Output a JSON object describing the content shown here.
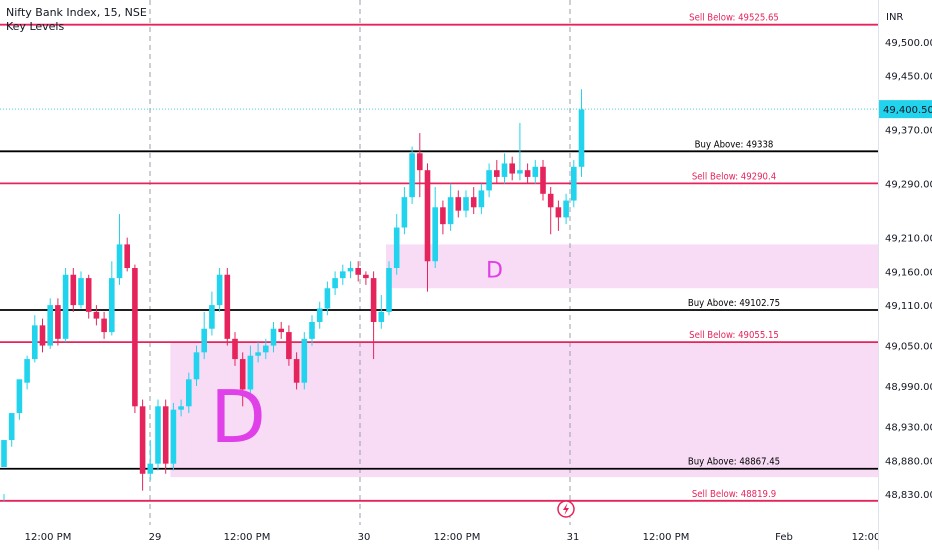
{
  "legend": {
    "symbol": "Nifty Bank Index, 15, NSE",
    "indicator": "Key Levels"
  },
  "currency": "INR",
  "last_price": "49,400.50",
  "event_icon": "flash-icon",
  "colors": {
    "up": "#22d3ee",
    "down": "#e5245c",
    "buy_line": "#000000",
    "sell_line": "#e5245c",
    "zone_fill": "#f8dcf6",
    "zone_label": "#e040e8",
    "last_price_line": "#4dd0e1",
    "last_price_tag": "#22d3ee"
  },
  "chart_data": {
    "type": "candlestick",
    "y_ticks": [
      "49,500.00",
      "49,450.00",
      "49,370.00",
      "49,290.00",
      "49,210.00",
      "49,160.00",
      "49,110.00",
      "49,050.00",
      "48,990.00",
      "48,930.00",
      "48,880.00",
      "48,830.00"
    ],
    "y_tick_values": [
      49500,
      49450,
      49370,
      49290,
      49210,
      49160,
      49110,
      49050,
      48990,
      48930,
      48880,
      48830
    ],
    "x_ticks": [
      "12:00 PM",
      "29",
      "12:00 PM",
      "30",
      "12:00 PM",
      "31",
      "12:00 PM",
      "Feb",
      "12:00"
    ],
    "levels": [
      {
        "label": "Sell Below: 49525.65",
        "price": 49525.65,
        "kind": "sell"
      },
      {
        "label": "Buy Above: 49338",
        "price": 49338,
        "kind": "buy"
      },
      {
        "label": "Sell Below: 49290.4",
        "price": 49290.4,
        "kind": "sell"
      },
      {
        "label": "Buy Above: 49102.75",
        "price": 49102.75,
        "kind": "buy"
      },
      {
        "label": "Sell Below: 49055.15",
        "price": 49055.15,
        "kind": "sell"
      },
      {
        "label": "Buy Above: 48867.45",
        "price": 48867.45,
        "kind": "buy"
      },
      {
        "label": "Sell Below: 48819.9",
        "price": 48819.9,
        "kind": "sell"
      }
    ],
    "zones": [
      {
        "label": "D",
        "top": 49200,
        "bottom": 49135,
        "start_index": 50
      },
      {
        "label": "D",
        "top": 49055,
        "bottom": 48855,
        "start_index": 22
      }
    ],
    "candles": [
      [
        48870,
        48910,
        48830,
        48820
      ],
      [
        48910,
        48950,
        48940,
        48900
      ],
      [
        48950,
        49000,
        48995,
        48940
      ],
      [
        48995,
        49030,
        49035,
        48985
      ],
      [
        49030,
        49080,
        49095,
        49025
      ],
      [
        49080,
        49050,
        49090,
        49040
      ],
      [
        49050,
        49110,
        49120,
        49045
      ],
      [
        49110,
        49060,
        49120,
        49050
      ],
      [
        49060,
        49155,
        49165,
        49055
      ],
      [
        49155,
        49110,
        49165,
        49100
      ],
      [
        49110,
        49150,
        49160,
        49105
      ],
      [
        49150,
        49100,
        49155,
        49090
      ],
      [
        49100,
        49090,
        49110,
        49080
      ],
      [
        49090,
        49070,
        49100,
        49060
      ],
      [
        49070,
        49150,
        49175,
        49065
      ],
      [
        49150,
        49200,
        49245,
        49140
      ],
      [
        49200,
        49165,
        49210,
        49160
      ],
      [
        49165,
        48960,
        49170,
        48950
      ],
      [
        48960,
        48860,
        48970,
        48835
      ],
      [
        48860,
        48875,
        48910,
        48850
      ],
      [
        48875,
        48960,
        48970,
        48865
      ],
      [
        48960,
        48875,
        48970,
        48860
      ],
      [
        48875,
        48955,
        48965,
        48865
      ],
      [
        48955,
        48960,
        48970,
        48945
      ],
      [
        48960,
        49000,
        49010,
        48950
      ],
      [
        49000,
        49040,
        49050,
        48990
      ],
      [
        49040,
        49075,
        49100,
        49030
      ],
      [
        49075,
        49110,
        49130,
        49065
      ],
      [
        49110,
        49155,
        49165,
        49100
      ],
      [
        49155,
        49060,
        49165,
        49050
      ],
      [
        49060,
        49030,
        49070,
        49020
      ],
      [
        49030,
        48985,
        49040,
        48960
      ],
      [
        48985,
        49035,
        49050,
        48975
      ],
      [
        49035,
        49040,
        49055,
        49025
      ],
      [
        49040,
        49050,
        49060,
        49030
      ],
      [
        49050,
        49075,
        49085,
        49040
      ],
      [
        49075,
        49070,
        49085,
        49060
      ],
      [
        49070,
        49030,
        49080,
        49020
      ],
      [
        49030,
        48995,
        49040,
        48985
      ],
      [
        48995,
        49060,
        49070,
        48985
      ],
      [
        49060,
        49085,
        49095,
        49050
      ],
      [
        49085,
        49105,
        49115,
        49075
      ],
      [
        49105,
        49135,
        49145,
        49095
      ],
      [
        49135,
        49150,
        49160,
        49125
      ],
      [
        49150,
        49160,
        49170,
        49140
      ],
      [
        49160,
        49165,
        49175,
        49150
      ],
      [
        49165,
        49155,
        49175,
        49145
      ],
      [
        49155,
        49150,
        49160,
        49140
      ],
      [
        49150,
        49085,
        49160,
        49030
      ],
      [
        49085,
        49100,
        49125,
        49075
      ],
      [
        49100,
        49165,
        49175,
        49095
      ],
      [
        49165,
        49225,
        49245,
        49155
      ],
      [
        49225,
        49270,
        49285,
        49215
      ],
      [
        49270,
        49335,
        49345,
        49260
      ],
      [
        49335,
        49310,
        49365,
        49270
      ],
      [
        49310,
        49175,
        49320,
        49130
      ],
      [
        49175,
        49255,
        49285,
        49165
      ],
      [
        49255,
        49230,
        49265,
        49215
      ],
      [
        49230,
        49270,
        49290,
        49220
      ],
      [
        49270,
        49250,
        49280,
        49240
      ],
      [
        49250,
        49270,
        49280,
        49240
      ],
      [
        49270,
        49255,
        49285,
        49245
      ],
      [
        49255,
        49280,
        49290,
        49245
      ],
      [
        49280,
        49310,
        49320,
        49270
      ],
      [
        49310,
        49300,
        49325,
        49290
      ],
      [
        49300,
        49320,
        49335,
        49290
      ],
      [
        49320,
        49305,
        49330,
        49295
      ],
      [
        49305,
        49310,
        49380,
        49295
      ],
      [
        49310,
        49300,
        49320,
        49290
      ],
      [
        49300,
        49315,
        49325,
        49290
      ],
      [
        49315,
        49275,
        49325,
        49265
      ],
      [
        49275,
        49255,
        49285,
        49215
      ],
      [
        49255,
        49240,
        49265,
        49220
      ],
      [
        49240,
        49265,
        49275,
        49230
      ],
      [
        49265,
        49315,
        49325,
        49255
      ],
      [
        49315,
        49400,
        49430,
        49300
      ]
    ]
  }
}
